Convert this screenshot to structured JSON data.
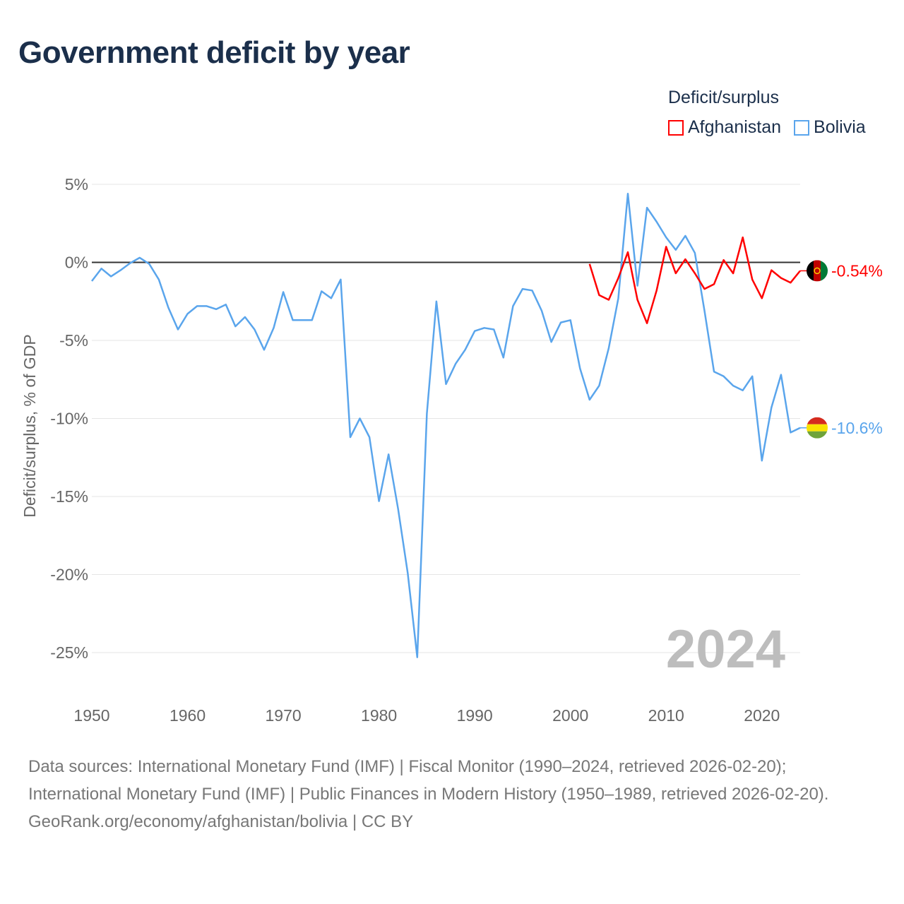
{
  "title": "Government deficit by year",
  "legend": {
    "title": "Deficit/surplus",
    "items": [
      {
        "label": "Afghanistan",
        "color": "#ff0000"
      },
      {
        "label": "Bolivia",
        "color": "#5aa5ec"
      }
    ]
  },
  "chart_data": {
    "type": "line",
    "title": "Government deficit by year",
    "xlabel": "",
    "ylabel": "Deficit/surplus, % of GDP",
    "xlim": [
      1950,
      2024
    ],
    "ylim": [
      -25,
      5
    ],
    "x_ticks": [
      "1950",
      "1960",
      "1970",
      "1980",
      "1990",
      "2000",
      "2010",
      "2020"
    ],
    "y_ticks": [
      {
        "value": 5,
        "label": "5%"
      },
      {
        "value": 0,
        "label": "0%"
      },
      {
        "value": -5,
        "label": "-5%"
      },
      {
        "value": -10,
        "label": "-10%"
      },
      {
        "value": -15,
        "label": "-15%"
      },
      {
        "value": -20,
        "label": "-20%"
      },
      {
        "value": -25,
        "label": "-25%"
      }
    ],
    "grid": true,
    "legend_position": "top-right",
    "year_label": "2024",
    "series": [
      {
        "name": "Afghanistan",
        "color": "#ff0000",
        "end_label": "-0.54%",
        "x": [
          2002,
          2003,
          2004,
          2005,
          2006,
          2007,
          2008,
          2009,
          2010,
          2011,
          2012,
          2013,
          2014,
          2015,
          2016,
          2017,
          2018,
          2019,
          2020,
          2021,
          2022,
          2023,
          2024
        ],
        "values": [
          -0.1,
          -2.1,
          -2.4,
          -1.0,
          0.65,
          -2.4,
          -3.9,
          -1.8,
          1.0,
          -0.7,
          0.2,
          -0.7,
          -1.7,
          -1.4,
          0.15,
          -0.7,
          1.6,
          -1.1,
          -2.3,
          -0.5,
          -1.0,
          -1.3,
          -0.54
        ]
      },
      {
        "name": "Bolivia",
        "color": "#5aa5ec",
        "end_label": "-10.6%",
        "x": [
          1950,
          1951,
          1952,
          1953,
          1954,
          1955,
          1956,
          1957,
          1958,
          1959,
          1960,
          1961,
          1962,
          1963,
          1964,
          1965,
          1966,
          1967,
          1968,
          1969,
          1970,
          1971,
          1972,
          1973,
          1974,
          1975,
          1976,
          1977,
          1978,
          1979,
          1980,
          1981,
          1982,
          1983,
          1984,
          1985,
          1986,
          1987,
          1988,
          1989,
          1990,
          1991,
          1992,
          1993,
          1994,
          1995,
          1996,
          1997,
          1998,
          1999,
          2000,
          2001,
          2002,
          2003,
          2004,
          2005,
          2006,
          2007,
          2008,
          2009,
          2010,
          2011,
          2012,
          2013,
          2014,
          2015,
          2016,
          2017,
          2018,
          2019,
          2020,
          2021,
          2022,
          2023,
          2024
        ],
        "values": [
          -1.2,
          -0.4,
          -0.9,
          -0.5,
          -0.05,
          0.3,
          -0.1,
          -1.1,
          -2.9,
          -4.3,
          -3.3,
          -2.8,
          -2.8,
          -3.0,
          -2.7,
          -4.1,
          -3.5,
          -4.3,
          -5.6,
          -4.2,
          -1.9,
          -3.7,
          -3.7,
          -3.7,
          -1.85,
          -2.3,
          -1.1,
          -11.2,
          -10.0,
          -11.2,
          -15.3,
          -12.3,
          -15.8,
          -19.9,
          -25.3,
          -9.7,
          -2.5,
          -7.8,
          -6.5,
          -5.6,
          -4.4,
          -4.2,
          -4.3,
          -6.1,
          -2.8,
          -1.7,
          -1.8,
          -3.1,
          -5.1,
          -3.85,
          -3.7,
          -6.8,
          -8.8,
          -7.9,
          -5.5,
          -2.3,
          4.4,
          -1.5,
          3.5,
          2.6,
          1.6,
          0.8,
          1.7,
          0.6,
          -3.1,
          -7.0,
          -7.3,
          -7.9,
          -8.2,
          -7.3,
          -12.7,
          -9.3,
          -7.2,
          -10.9,
          -10.6
        ]
      }
    ]
  },
  "footer": {
    "sources": "Data sources: International Monetary Fund (IMF) | Fiscal Monitor (1990–2024, retrieved 2026-02-20); International Monetary Fund (IMF) | Public Finances in Modern History (1950–1989, retrieved 2026-02-20).",
    "credit": "GeoRank.org/economy/afghanistan/bolivia | CC BY"
  }
}
